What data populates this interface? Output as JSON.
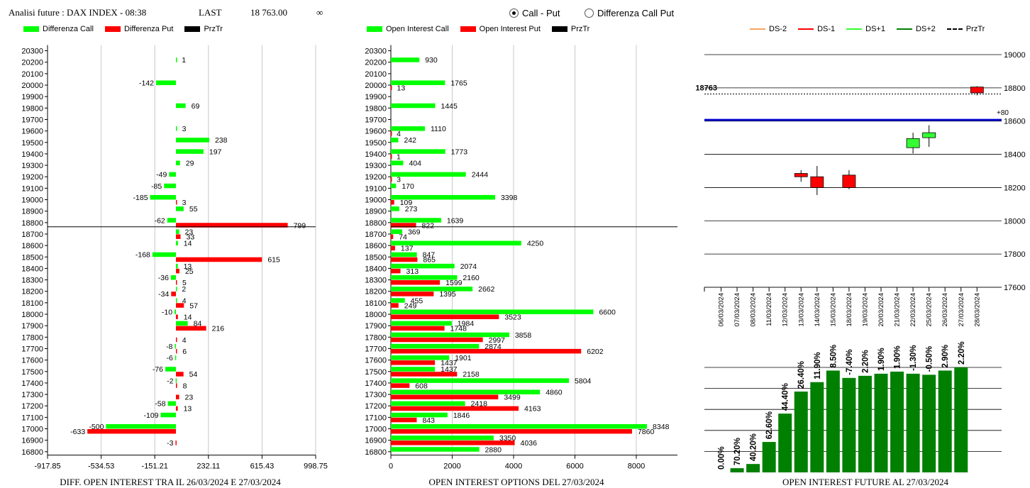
{
  "header": {
    "title": "Analisi future : DAX INDEX - 08:38",
    "last_label": "LAST",
    "last_value": "18 763.00",
    "infinity": "∞"
  },
  "radio": {
    "option1": "Call - Put",
    "option2": "Differenza Call Put",
    "selected": "Call - Put"
  },
  "legend1": {
    "call": "Differenza Call",
    "put": "Differenza Put",
    "prz": "PrzTr"
  },
  "legend2": {
    "call": "Open Interest Call",
    "put": "Open Interest Put",
    "prz": "PrzTr"
  },
  "legend3": {
    "ds_2": "DS-2",
    "ds_1": "DS-1",
    "ds_p1": "DS+1",
    "ds_p2": "DS+2",
    "prz": "PrzTr"
  },
  "colors": {
    "call": "#00ff00",
    "put": "#ff0000",
    "prz": "#000000",
    "ds_2": "#f4a460",
    "ds_1": "#ff0000",
    "ds_p1": "#33ff33",
    "ds_p2": "#008000",
    "dark_green": "#008000",
    "blue": "#0000cc"
  },
  "footers": {
    "left": "DIFF. OPEN INTEREST TRA IL 26/03/2024 E 27/03/2024",
    "middle": "OPEN INTEREST OPTIONS DEL 27/03/2024",
    "right": "OPEN INTEREST FUTURE AL 27/03/2024"
  },
  "chart_data": [
    {
      "type": "bar",
      "orientation": "horizontal",
      "strikes": [
        20300,
        20200,
        20100,
        20000,
        19900,
        19800,
        19700,
        19600,
        19500,
        19400,
        19300,
        19200,
        19100,
        19000,
        18900,
        18800,
        18700,
        18600,
        18500,
        18400,
        18300,
        18200,
        18100,
        18000,
        17900,
        17800,
        17700,
        17600,
        17500,
        17400,
        17300,
        17200,
        17100,
        17000,
        16900,
        16800
      ],
      "series": [
        {
          "name": "Differenza Call",
          "values": [
            null,
            1,
            null,
            -142,
            null,
            69,
            null,
            3,
            238,
            197,
            29,
            -49,
            -85,
            -185,
            55,
            -62,
            23,
            14,
            -168,
            13,
            -36,
            2,
            4,
            -10,
            84,
            null,
            -8,
            -6,
            -76,
            -2,
            null,
            -58,
            -109,
            -500,
            null,
            null
          ]
        },
        {
          "name": "Differenza Put",
          "values": [
            null,
            null,
            null,
            null,
            null,
            null,
            null,
            null,
            null,
            null,
            null,
            null,
            null,
            3,
            null,
            799,
            33,
            null,
            615,
            25,
            5,
            -34,
            57,
            14,
            216,
            4,
            6,
            null,
            54,
            8,
            23,
            13,
            null,
            -633,
            -3,
            null
          ]
        }
      ],
      "prz_level": 18763,
      "xticks": [
        "-917.85",
        "-534.53",
        "-151.21",
        "232.11",
        "615.43",
        "998.75"
      ],
      "xlim": [
        -917.85,
        998.75
      ]
    },
    {
      "type": "bar",
      "orientation": "horizontal",
      "strikes": [
        20300,
        20200,
        20100,
        20000,
        19900,
        19800,
        19700,
        19600,
        19500,
        19400,
        19300,
        19200,
        19100,
        19000,
        18900,
        18800,
        18700,
        18600,
        18500,
        18400,
        18300,
        18200,
        18100,
        18000,
        17900,
        17800,
        17700,
        17600,
        17500,
        17400,
        17300,
        17200,
        17100,
        17000,
        16900,
        16800
      ],
      "series": [
        {
          "name": "Open Interest Call",
          "values": [
            null,
            930,
            null,
            1765,
            null,
            1445,
            null,
            1110,
            242,
            1773,
            404,
            2444,
            170,
            3398,
            273,
            1639,
            369,
            4250,
            847,
            2074,
            2160,
            2662,
            455,
            6600,
            1984,
            3858,
            2874,
            1901,
            1437,
            5804,
            4860,
            2418,
            1846,
            8348,
            3350,
            2880
          ]
        },
        {
          "name": "Open Interest Put",
          "values": [
            null,
            null,
            null,
            13,
            null,
            null,
            null,
            4,
            null,
            1,
            null,
            3,
            null,
            109,
            null,
            822,
            74,
            137,
            865,
            313,
            1599,
            1395,
            249,
            3523,
            1748,
            2997,
            6202,
            1437,
            2158,
            608,
            3499,
            4163,
            843,
            7860,
            4036,
            null
          ]
        }
      ],
      "prz_level": 18763,
      "xticks": [
        "0",
        "2000",
        "4000",
        "6000",
        "8000"
      ],
      "xlim": [
        0,
        9200
      ]
    },
    {
      "type": "candlestick",
      "dates": [
        "06/03/2024",
        "07/03/2024",
        "08/03/2024",
        "11/03/2024",
        "12/03/2024",
        "13/03/2024",
        "14/03/2024",
        "15/03/2024",
        "18/03/2024",
        "19/03/2024",
        "20/03/2024",
        "21/03/2024",
        "22/03/2024",
        "25/03/2024",
        "26/03/2024",
        "27/03/2024",
        "28/03/2024"
      ],
      "candles": [
        {
          "date": "13/03/2024",
          "open": 18285,
          "close": 18265,
          "high": 18305,
          "low": 18235,
          "series": "DS-1"
        },
        {
          "date": "14/03/2024",
          "open": 18265,
          "close": 18200,
          "high": 18330,
          "low": 18155,
          "series": "DS-1"
        },
        {
          "date": "18/03/2024",
          "open": 18275,
          "close": 18200,
          "high": 18305,
          "low": 18190,
          "series": "DS-1"
        },
        {
          "date": "22/03/2024",
          "open": 18440,
          "close": 18495,
          "high": 18530,
          "low": 18405,
          "series": "DS+1"
        },
        {
          "date": "25/03/2024",
          "open": 18500,
          "close": 18530,
          "high": 18575,
          "low": 18445,
          "series": "DS+1"
        },
        {
          "date": "28/03/2024",
          "open": 18805,
          "close": 18770,
          "high": 18810,
          "low": 18755,
          "series": "DS-1"
        }
      ],
      "prz_level": 18763,
      "prz_label": "18763",
      "blue_level": 18607,
      "blue_label": "+80",
      "yticks": [
        "19000",
        "18800",
        "18600",
        "18400",
        "18200",
        "18000",
        "17800",
        "17600"
      ],
      "ylim": [
        17600,
        19000
      ]
    },
    {
      "type": "bar",
      "categories": [
        "06/03/2024",
        "07/03/2024",
        "08/03/2024",
        "11/03/2024",
        "12/03/2024",
        "13/03/2024",
        "14/03/2024",
        "15/03/2024",
        "18/03/2024",
        "19/03/2024",
        "20/03/2024",
        "21/03/2024",
        "22/03/2024",
        "25/03/2024",
        "26/03/2024",
        "27/03/2024"
      ],
      "values": [
        0.0,
        4,
        8,
        29,
        56,
        77,
        86,
        97,
        90,
        92,
        94,
        96,
        94,
        93,
        97,
        100
      ],
      "labels": [
        "0.00%",
        "70.20%",
        "40.20%",
        "62.60%",
        "44.40%",
        "26.40%",
        "11.90%",
        "8.50%",
        "-7.40%",
        "2.20%",
        "1.90%",
        "1.90%",
        "-1.30%",
        "-0.50%",
        "2.90%",
        "2.20%"
      ]
    }
  ]
}
